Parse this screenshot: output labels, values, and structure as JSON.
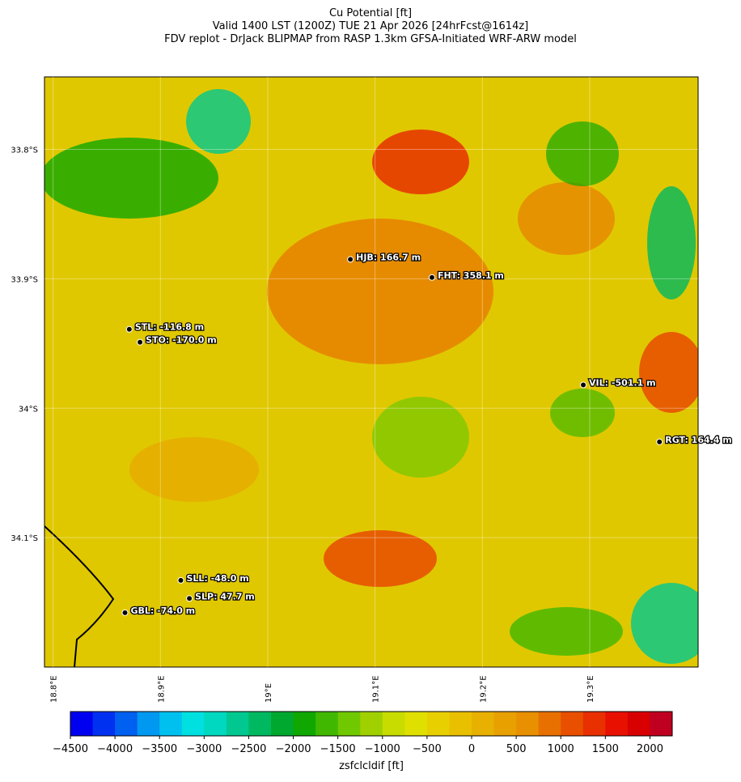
{
  "chart_data": {
    "type": "station-map",
    "title": "Cu Potential [ft]",
    "subtitle": "Valid 1400 LST (1200Z) TUE 21 Apr 2026 [24hrFcst@1614z]",
    "subtitle2": "FDV replot - DrJack BLIPMAP from RASP 1.3km GFSA-Initiated WRF-ARW model",
    "xlim": [
      18.792,
      19.401
    ],
    "ylim": [
      -33.744,
      -34.2
    ],
    "xticks": [
      {
        "value": 18.8,
        "label": "18.8°E"
      },
      {
        "value": 18.9,
        "label": "18.9°E"
      },
      {
        "value": 19.0,
        "label": "19°E"
      },
      {
        "value": 19.1,
        "label": "19.1°E"
      },
      {
        "value": 19.2,
        "label": "19.2°E"
      },
      {
        "value": 19.3,
        "label": "19.3°E"
      }
    ],
    "yticks": [
      {
        "value": -33.8,
        "label": "33.8°S"
      },
      {
        "value": -33.9,
        "label": "33.9°S"
      },
      {
        "value": -34.0,
        "label": "34°S"
      },
      {
        "value": -34.1,
        "label": "34.1°S"
      }
    ],
    "stations": [
      {
        "label": "HJB: 166.7 m",
        "lon": 19.077,
        "lat": -33.885
      },
      {
        "label": "FHT: 358.1 m",
        "lon": 19.153,
        "lat": -33.899
      },
      {
        "label": "STL: -116.8 m",
        "lon": 18.871,
        "lat": -33.939
      },
      {
        "label": "STO: -170.0 m",
        "lon": 18.881,
        "lat": -33.949
      },
      {
        "label": "VIL: -501.1 m",
        "lon": 19.294,
        "lat": -33.982
      },
      {
        "label": "RGT: 164.4 m",
        "lon": 19.365,
        "lat": -34.026
      },
      {
        "label": "SLL: -48.0 m",
        "lon": 18.919,
        "lat": -34.133
      },
      {
        "label": "SLP: 47.7 m",
        "lon": 18.927,
        "lat": -34.147
      },
      {
        "label": "GBL: -74.0 m",
        "lon": 18.867,
        "lat": -34.158
      }
    ],
    "colorbar": {
      "label": "zsfclcldif [ft]",
      "lim": [
        -4500,
        2250
      ],
      "ticks": [
        {
          "value": -4500,
          "label": "−4500"
        },
        {
          "value": -4000,
          "label": "−4000"
        },
        {
          "value": -3500,
          "label": "−3500"
        },
        {
          "value": -3000,
          "label": "−3000"
        },
        {
          "value": -2500,
          "label": "−2500"
        },
        {
          "value": -2000,
          "label": "−2000"
        },
        {
          "value": -1500,
          "label": "−1500"
        },
        {
          "value": -1000,
          "label": "−1000"
        },
        {
          "value": -500,
          "label": "−500"
        },
        0,
        500,
        1000,
        1500,
        2000
      ],
      "colors": [
        "#0000f0",
        "#0030f0",
        "#0060f0",
        "#0098f0",
        "#00c0f0",
        "#00e0e0",
        "#00d8c0",
        "#00c890",
        "#00b860",
        "#00a830",
        "#10a800",
        "#40b800",
        "#70c800",
        "#a0d000",
        "#c8dc00",
        "#e0e000",
        "#e8d000",
        "#e8c000",
        "#e8b000",
        "#e8a000",
        "#e89000",
        "#e87000",
        "#e85000",
        "#e83000",
        "#e81000",
        "#d80000",
        "#c00020"
      ]
    }
  }
}
